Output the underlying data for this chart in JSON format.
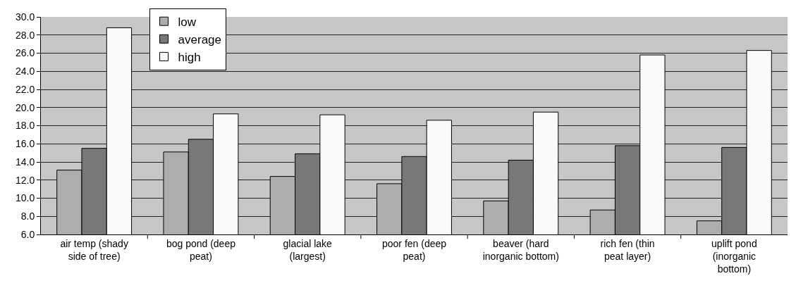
{
  "chart_data": {
    "type": "bar",
    "categories": [
      "air temp (shady side of tree)",
      "bog pond (deep peat)",
      "glacial lake (largest)",
      "poor fen (deep peat)",
      "beaver (hard inorganic bottom)",
      "rich fen (thin peat layer)",
      "uplift pond (inorganic bottom)"
    ],
    "series": [
      {
        "name": "low",
        "color": "#adadad",
        "values": [
          13.1,
          15.1,
          12.4,
          11.6,
          9.7,
          8.7,
          7.5
        ]
      },
      {
        "name": "average",
        "color": "#77787a",
        "values": [
          15.5,
          16.5,
          14.9,
          14.6,
          14.2,
          15.8,
          15.6
        ]
      },
      {
        "name": "high",
        "color": "#fafafa",
        "values": [
          28.8,
          19.3,
          19.2,
          18.6,
          19.5,
          25.8,
          26.3
        ]
      }
    ],
    "ylim": [
      6,
      30
    ],
    "yticks": [
      {
        "value": 6,
        "label": "6.0"
      },
      {
        "value": 8,
        "label": "8.0"
      },
      {
        "value": 10,
        "label": "10.0"
      },
      {
        "value": 12,
        "label": "12.0"
      },
      {
        "value": 14,
        "label": "14.0"
      },
      {
        "value": 16,
        "label": "16.0"
      },
      {
        "value": 18,
        "label": "18.0"
      },
      {
        "value": 20,
        "label": "20.0"
      },
      {
        "value": 22,
        "label": "22.0"
      },
      {
        "value": 24,
        "label": "24.0"
      },
      {
        "value": 26,
        "label": "26.0"
      },
      {
        "value": 28,
        "label": "28.0"
      },
      {
        "value": 30,
        "label": "30.0"
      }
    ],
    "grid": "y",
    "legend": "top left"
  }
}
